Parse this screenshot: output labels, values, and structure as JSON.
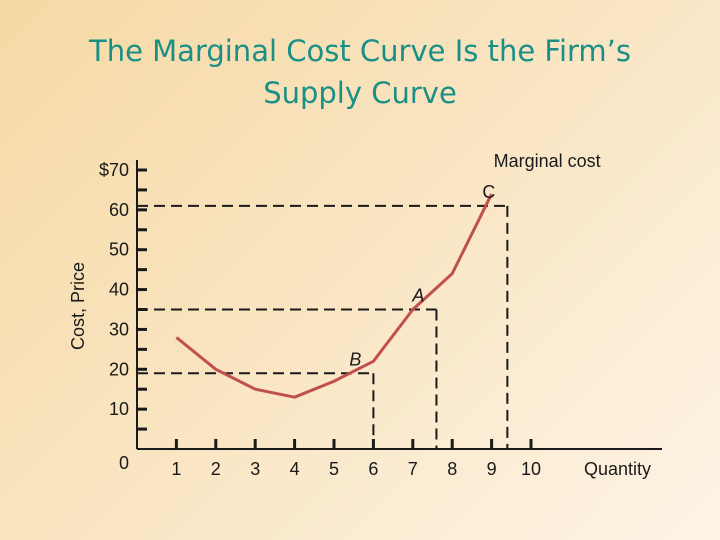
{
  "title_line1": "The Marginal Cost Curve Is the Firm’s",
  "title_line2": "Supply Curve",
  "chart_data": {
    "type": "line",
    "xlabel": "Quantity",
    "ylabel": "Cost, Price",
    "x_ticks": [
      "1",
      "2",
      "3",
      "4",
      "5",
      "6",
      "7",
      "8",
      "9",
      "10"
    ],
    "y_ticks": [
      "0",
      "10",
      "20",
      "30",
      "40",
      "50",
      "60",
      "$70"
    ],
    "xlim": [
      0,
      10.5
    ],
    "ylim": [
      0,
      70
    ],
    "series": [
      {
        "name": "Marginal cost",
        "color": "#c0504d",
        "x": [
          1,
          2,
          3,
          4,
          5,
          6,
          7,
          8,
          9
        ],
        "y": [
          28,
          20,
          15,
          13,
          17,
          22,
          35,
          44,
          64
        ]
      }
    ],
    "points": [
      {
        "label": "B",
        "x": 6,
        "y": 19,
        "italic": true
      },
      {
        "label": "A",
        "x": 7.6,
        "y": 35,
        "italic": true
      },
      {
        "label": "C",
        "x": 9.4,
        "y": 61,
        "italic": false
      }
    ]
  }
}
